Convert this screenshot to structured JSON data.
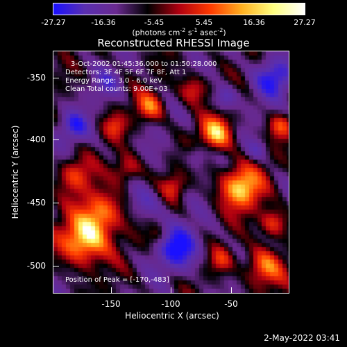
{
  "colorbar": {
    "ticks": [
      "-27.27",
      "-16.36",
      "-5.45",
      "5.45",
      "16.36",
      "27.27"
    ],
    "units_prefix": "(photons cm",
    "units_exp1": "-2",
    "units_mid1": " s",
    "units_exp2": "-1",
    "units_mid2": " asec",
    "units_exp3": "-2",
    "units_suffix": ")",
    "colors": [
      "#1a10ff",
      "#5a2fb0",
      "#6a2a90",
      "#000000",
      "#b00010",
      "#ff3a00",
      "#ffb020",
      "#ffff80",
      "#ffffff"
    ]
  },
  "title": "Reconstructed RHESSI Image",
  "annotations": {
    "time_range": "3-Oct-2002 01:45:36.000 to 01:50:28.000",
    "detectors": "Detectors: 3F 4F 5F 6F 7F 8F, Att 1",
    "energy": "Energy Range: 3.0 - 6.0 keV",
    "method": "Clean    Total counts: 9.00E+03",
    "peak": "Position of Peak = [-170,-483]"
  },
  "axes": {
    "xlabel": "Heliocentric X (arcsec)",
    "ylabel": "Heliocentric Y (arcsec)",
    "xticks": [
      "-150",
      "-100",
      "-50"
    ],
    "yticks": [
      "-350",
      "-400",
      "-450",
      "-500"
    ]
  },
  "chart_data": {
    "type": "heatmap",
    "title": "Reconstructed RHESSI Image",
    "xlabel": "Heliocentric X (arcsec)",
    "ylabel": "Heliocentric Y (arcsec)",
    "xlim": [
      -197,
      -12
    ],
    "ylim": [
      -523,
      -327
    ],
    "xtick_values": [
      -150,
      -100,
      -50
    ],
    "ytick_values": [
      -350,
      -400,
      -450,
      -500
    ],
    "zlim": [
      -27.27,
      27.27
    ],
    "colorbar_ticks": [
      -27.27,
      -16.36,
      -5.45,
      5.45,
      16.36,
      27.27
    ],
    "colorbar_units": "(photons cm-2 s-1 asec-2)",
    "peak_position": [
      -170,
      -483
    ],
    "colormap": "blue-purple-black-red-yellow-white"
  },
  "footer": {
    "timestamp": "2-May-2022 03:41"
  }
}
